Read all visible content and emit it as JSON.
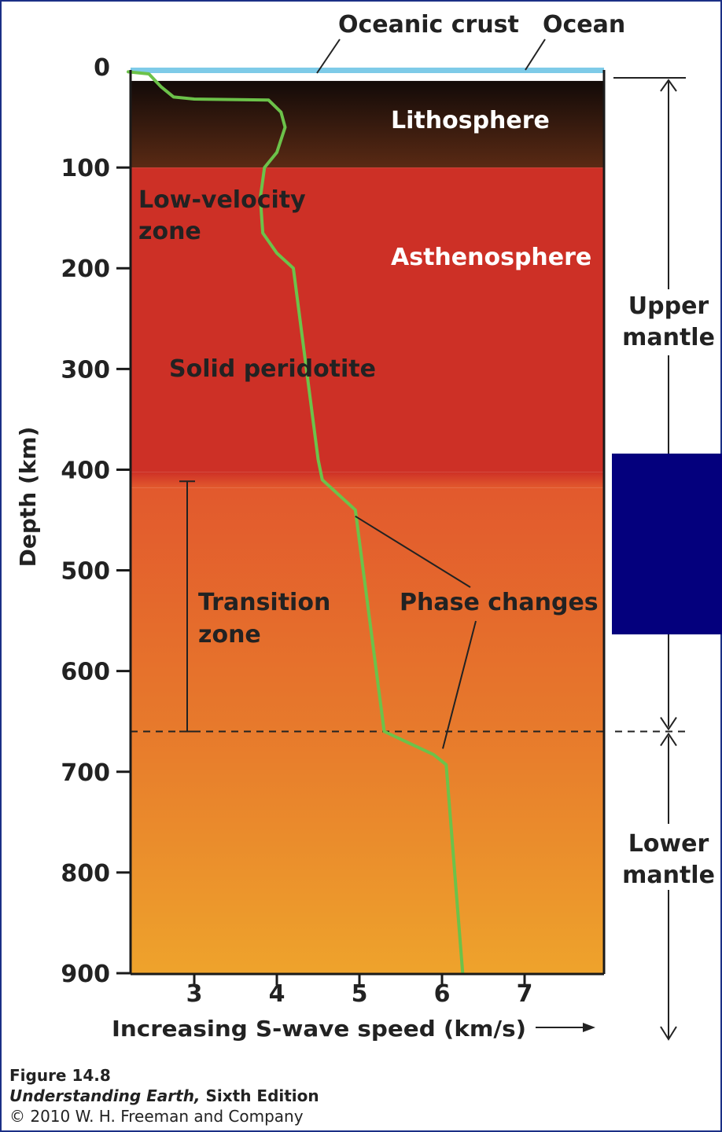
{
  "chart_data": {
    "type": "line",
    "xlabel": "Increasing S-wave speed (km/s)",
    "ylabel": "Depth (km)",
    "xlim": [
      2.2,
      7.95
    ],
    "ylim": [
      0,
      900
    ],
    "y_inverted": true,
    "x_ticks": [
      "3",
      "4",
      "5",
      "6",
      "7"
    ],
    "y_ticks": [
      "0",
      "100",
      "200",
      "300",
      "400",
      "500",
      "600",
      "700",
      "800",
      "900"
    ],
    "series": [
      {
        "color": "#6cc24a",
        "points": [
          {
            "x": 2.2,
            "y": 5
          },
          {
            "x": 2.45,
            "y": 7
          },
          {
            "x": 2.6,
            "y": 20
          },
          {
            "x": 2.75,
            "y": 30
          },
          {
            "x": 3.0,
            "y": 32
          },
          {
            "x": 3.9,
            "y": 33
          },
          {
            "x": 4.05,
            "y": 45
          },
          {
            "x": 4.1,
            "y": 60
          },
          {
            "x": 4.0,
            "y": 85
          },
          {
            "x": 3.85,
            "y": 100
          },
          {
            "x": 3.8,
            "y": 130
          },
          {
            "x": 3.83,
            "y": 165
          },
          {
            "x": 4.0,
            "y": 185
          },
          {
            "x": 4.2,
            "y": 200
          },
          {
            "x": 4.5,
            "y": 390
          },
          {
            "x": 4.55,
            "y": 410
          },
          {
            "x": 4.95,
            "y": 440
          },
          {
            "x": 5.3,
            "y": 660
          },
          {
            "x": 5.9,
            "y": 683
          },
          {
            "x": 6.05,
            "y": 693
          },
          {
            "x": 6.25,
            "y": 900
          }
        ]
      }
    ],
    "layers": [
      {
        "name": "Lithosphere",
        "top": 0,
        "bottom": 100,
        "color_top": "#120a08",
        "color_bottom": "#5a2a14"
      },
      {
        "name": "Asthenosphere",
        "top": 100,
        "bottom": 410,
        "color": "#cd3026"
      },
      {
        "name": "Transition zone",
        "top": 410,
        "bottom": 660,
        "color_top": "#e2592d",
        "color_bottom": "#e77a2c"
      },
      {
        "name": "Lower mantle",
        "top": 660,
        "bottom": 900,
        "color_top": "#e77a2c",
        "color_bottom": "#eea32c"
      }
    ],
    "transition_zone_bar": {
      "top": 410,
      "bottom": 660
    },
    "boundary_depth": 660,
    "ocean_color": "#7ecbe8",
    "annotations": {
      "oceanic_crust": "Oceanic crust",
      "ocean": "Ocean",
      "lithosphere": "Lithosphere",
      "low_velocity_zone": [
        "Low-velocity",
        "zone"
      ],
      "asthenosphere": "Asthenosphere",
      "solid_peridotite": "Solid peridotite",
      "transition_zone": [
        "Transition",
        "zone"
      ],
      "phase_changes": "Phase changes",
      "upper_mantle": [
        "Upper",
        "mantle"
      ],
      "lower_mantle": [
        "Lower",
        "mantle"
      ]
    },
    "phase_change_points": [
      {
        "x": 4.95,
        "y": 440
      },
      {
        "x": 6.0,
        "y": 688
      }
    ]
  },
  "caption": {
    "figure": "Figure 14.8",
    "book_title": "Understanding Earth,",
    "edition": " Sixth Edition",
    "copyright": "© 2010 W. H. Freeman and Company"
  }
}
